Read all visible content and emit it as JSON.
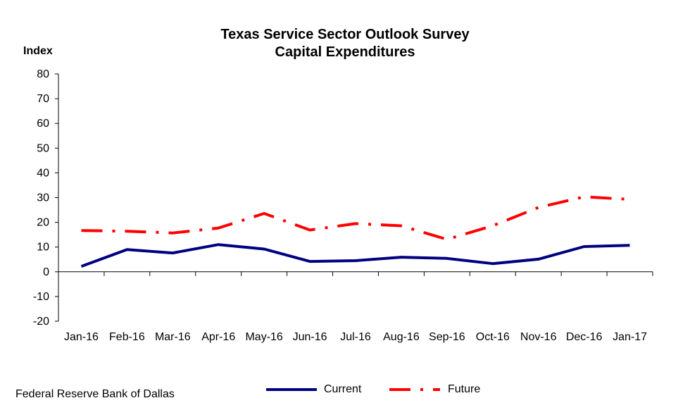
{
  "chart_data": {
    "type": "line",
    "title": "Texas Service Sector Outlook Survey",
    "subtitle": "Capital Expenditures",
    "ylabel": "Index",
    "xlabel": "",
    "ylim": [
      -20,
      80
    ],
    "yticks": [
      80,
      70,
      60,
      50,
      40,
      30,
      20,
      10,
      0,
      -10,
      -20
    ],
    "categories": [
      "Jan-16",
      "Feb-16",
      "Mar-16",
      "Apr-16",
      "May-16",
      "Jun-16",
      "Jul-16",
      "Aug-16",
      "Sep-16",
      "Oct-16",
      "Nov-16",
      "Dec-16",
      "Jan-17"
    ],
    "series": [
      {
        "name": "Current",
        "color": "#000080",
        "style": "solid",
        "values": [
          2.2,
          9.0,
          7.6,
          11.0,
          9.2,
          4.2,
          4.5,
          5.9,
          5.4,
          3.3,
          5.1,
          10.2,
          10.7
        ]
      },
      {
        "name": "Future",
        "color": "#ff0000",
        "style": "dash-dot",
        "values": [
          16.7,
          16.4,
          15.7,
          17.7,
          23.6,
          16.9,
          19.5,
          18.6,
          13.1,
          18.6,
          26.0,
          30.3,
          29.3
        ]
      }
    ],
    "legend_position": "bottom",
    "grid": false
  },
  "source": "Federal Reserve Bank of Dallas"
}
